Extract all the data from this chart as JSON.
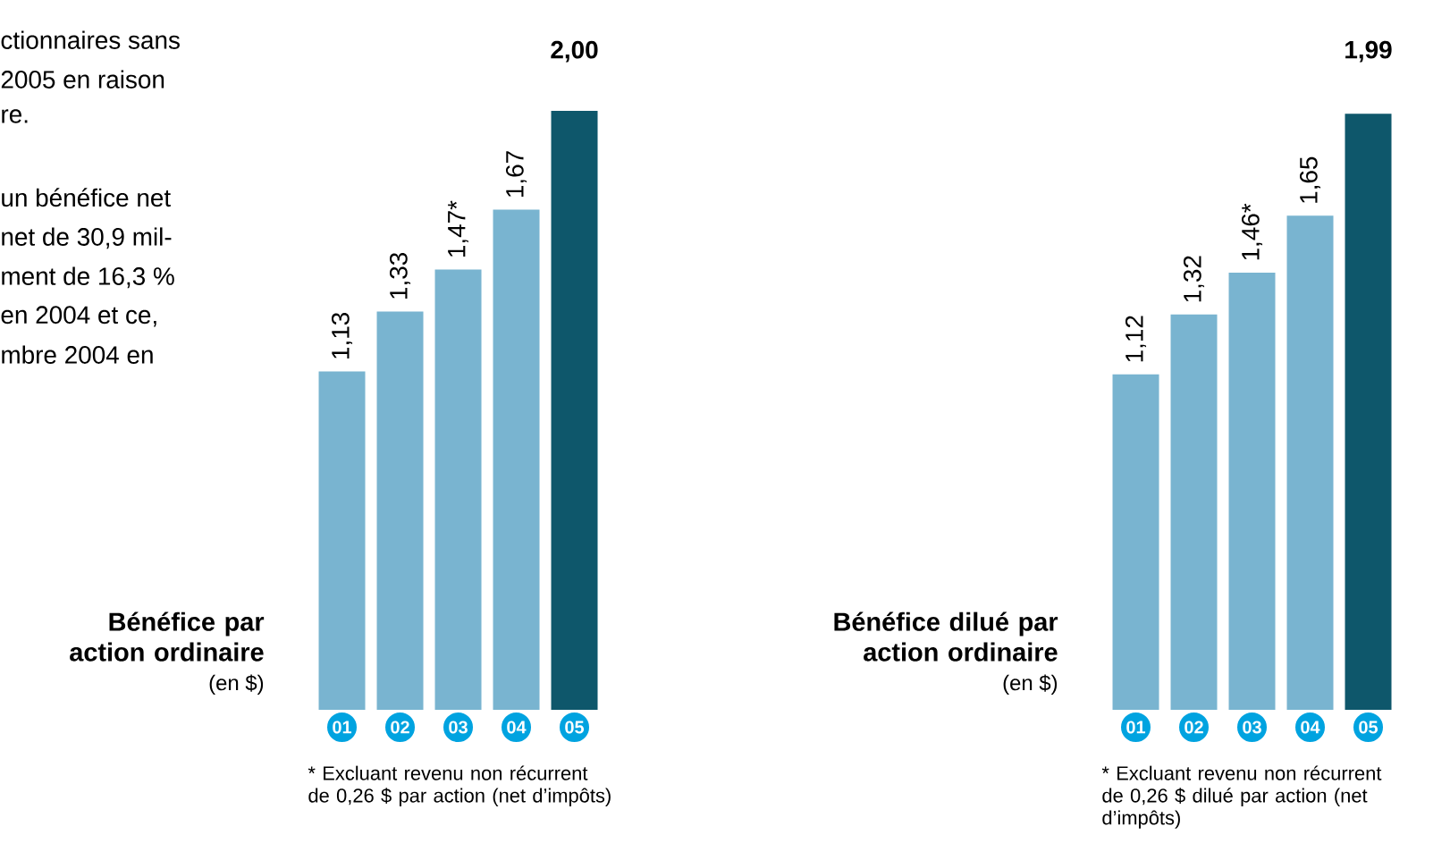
{
  "chart_data": [
    {
      "type": "bar",
      "title": "Bénéfice par action ordinaire",
      "subtitle": "(en $)",
      "categories": [
        "01",
        "02",
        "03",
        "04",
        "05"
      ],
      "values": [
        1.13,
        1.33,
        1.47,
        1.67,
        2.0
      ],
      "value_labels": [
        "1,13",
        "1,33",
        "1,47*",
        "1,67",
        "2,00"
      ],
      "colors": [
        "#79b4d0",
        "#79b4d0",
        "#79b4d0",
        "#79b4d0",
        "#0e576b"
      ],
      "ylim": [
        0,
        2.0
      ],
      "tick_labels": "x",
      "annotations": [
        "* Excluant revenu non récurrent de 0,26 $ par action (net d’impôts)",
        "ctionnaires sans",
        "2005 en raison",
        "re.",
        "un bénéfice net",
        "net de 30,9 mil-",
        "ment de 16,3 %",
        "en 2004 et ce,",
        "mbre 2004 en"
      ]
    },
    {
      "type": "bar",
      "title": "Bénéfice dilué par action ordinaire",
      "subtitle": "(en $)",
      "categories": [
        "01",
        "02",
        "03",
        "04",
        "05"
      ],
      "values": [
        1.12,
        1.32,
        1.46,
        1.65,
        1.99
      ],
      "value_labels": [
        "1,12",
        "1,32",
        "1,46*",
        "1,65",
        "1,99"
      ],
      "colors": [
        "#79b4d0",
        "#79b4d0",
        "#79b4d0",
        "#79b4d0",
        "#0e576b"
      ],
      "ylim": [
        0,
        2.0
      ],
      "tick_labels": "x",
      "annotations": [
        "* Excluant revenu non récurrent de 0,26 $ dilué par action (net d’impôts)"
      ]
    }
  ]
}
